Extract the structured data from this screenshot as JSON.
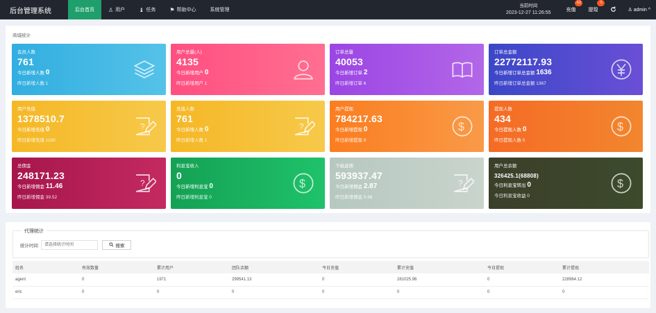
{
  "brand": "后台管理系统",
  "nav": [
    {
      "icon": "",
      "label": "后台首页"
    },
    {
      "icon": "♙",
      "label": "用户"
    },
    {
      "icon": "♝",
      "label": "任务"
    },
    {
      "icon": "⚑",
      "label": "帮助中心"
    },
    {
      "icon": "",
      "label": "系统管理"
    }
  ],
  "clock": {
    "label": "当前时间",
    "value": "2023-12-27 11:26:55"
  },
  "topright": {
    "recharge": "充值",
    "recharge_badge": "62",
    "withdraw": "提现",
    "withdraw_badge": "0",
    "refresh_icon": "refresh-icon",
    "user": "♙ admin ^"
  },
  "stats": {
    "title": "商城统计",
    "cards": [
      {
        "label": "会员人数",
        "value": "761",
        "sub1_label": "今日新增人数",
        "sub1_value": "0",
        "sub2": "昨日新增人数 1",
        "icon": "layers-icon",
        "color": "#31aee0"
      },
      {
        "label": "用户总量(人)",
        "value": "4135",
        "sub1_label": "今日新增用户",
        "sub1_value": "0",
        "sub2": "昨日新增用户 1",
        "icon": "user-icon",
        "color": "#ff4f81"
      },
      {
        "label": "订单总量",
        "value": "40053",
        "sub1_label": "今日新增订单",
        "sub1_value": "2",
        "sub2": "昨日新增订单 6",
        "icon": "book-icon",
        "color": "#9b45e4"
      },
      {
        "label": "订单总金额",
        "value": "22772117.93",
        "sub1_label": "今日新增订单总金额",
        "sub1_value": "1636",
        "sub2": "昨日新增订单总金额 1367",
        "icon": "yen-icon",
        "color": "#3b47c8"
      },
      {
        "label": "用户充值",
        "value": "1378510.7",
        "sub1_label": "今日新增充值",
        "sub1_value": "0",
        "sub2": "昨日新增充值 1100",
        "icon": "edit-icon",
        "color": "#f5b726"
      },
      {
        "label": "充值人数",
        "value": "761",
        "sub1_label": "今日新增人数",
        "sub1_value": "0",
        "sub2": "昨日新增人数 1",
        "icon": "edit-icon",
        "color": "#f5b726"
      },
      {
        "label": "用户提现",
        "value": "784217.63",
        "sub1_label": "今日新增提现",
        "sub1_value": "0",
        "sub2": "昨日新增提现 0",
        "icon": "dollar-icon",
        "color": "#fb7d1f"
      },
      {
        "label": "提现人数",
        "value": "434",
        "sub1_label": "今日提现人数",
        "sub1_value": "0",
        "sub2": "昨日提现人数 0",
        "icon": "dollar-icon",
        "color": "#f56b25"
      },
      {
        "label": "总佣金",
        "value": "248171.23",
        "sub1_label": "今日新增佣金",
        "sub1_value": "11.46",
        "sub2": "昨日新增佣金 39.52",
        "icon": "edit-icon",
        "color": "#a6164a"
      },
      {
        "label": "利息宝收入",
        "value": "0",
        "sub1_label": "今日新增利息宝",
        "sub1_value": "0",
        "sub2": "昨日新增利息宝 0",
        "icon": "dollar-icon",
        "color": "#14a154"
      },
      {
        "label": "下级返佣",
        "value": "593937.47",
        "sub1_label": "今日新增佣金",
        "sub1_value": "2.87",
        "sub2": "昨日新增佣金 9.88",
        "icon": "edit-icon",
        "color": "#b6c8c0"
      },
      {
        "label": "用户总余额",
        "value": "326425.1(68808)",
        "value_small": true,
        "sub1_label": "今日利息宝转出",
        "sub1_value": "0",
        "sub2": "今日利息宝收益 0",
        "icon": "dollar-icon",
        "color": "#3b3f2a"
      }
    ]
  },
  "agent": {
    "legend": "代理统计",
    "filter_label": "统计时间",
    "filter_placeholder": "请选择统计时间",
    "search_label": "搜索",
    "columns": [
      "姓名",
      "有效数量",
      "累计用户",
      "团队余额",
      "今日充值",
      "累计充值",
      "今日提现",
      "累计提现"
    ],
    "rows": [
      [
        "agent",
        "0",
        "1971",
        "299541.13",
        "0",
        "281025.96",
        "0",
        "228964.12"
      ],
      [
        "eric",
        "0",
        "0",
        "0",
        "0",
        "0",
        "0",
        "0"
      ]
    ]
  }
}
